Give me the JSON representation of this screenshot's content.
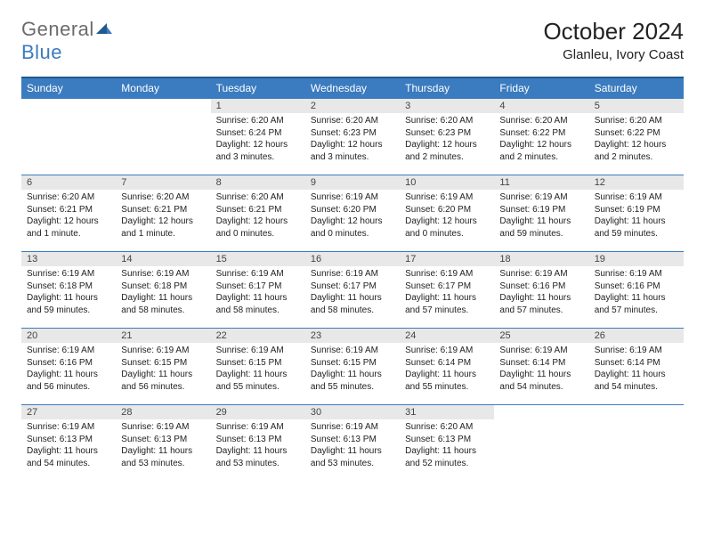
{
  "logo": {
    "text_general": "General",
    "text_blue": "Blue"
  },
  "title": "October 2024",
  "location": "Glanleu, Ivory Coast",
  "colors": {
    "header_bg": "#3b7bbf",
    "header_border_top": "#1f5a8f",
    "row_border": "#3b7bbf",
    "daynum_bg": "#e8e8e8",
    "text": "#222222",
    "logo_gray": "#6b6b6b",
    "logo_blue": "#3b7bbf"
  },
  "day_headers": [
    "Sunday",
    "Monday",
    "Tuesday",
    "Wednesday",
    "Thursday",
    "Friday",
    "Saturday"
  ],
  "weeks": [
    [
      {
        "n": "",
        "sr": "",
        "ss": "",
        "dl": ""
      },
      {
        "n": "",
        "sr": "",
        "ss": "",
        "dl": ""
      },
      {
        "n": "1",
        "sr": "Sunrise: 6:20 AM",
        "ss": "Sunset: 6:24 PM",
        "dl": "Daylight: 12 hours and 3 minutes."
      },
      {
        "n": "2",
        "sr": "Sunrise: 6:20 AM",
        "ss": "Sunset: 6:23 PM",
        "dl": "Daylight: 12 hours and 3 minutes."
      },
      {
        "n": "3",
        "sr": "Sunrise: 6:20 AM",
        "ss": "Sunset: 6:23 PM",
        "dl": "Daylight: 12 hours and 2 minutes."
      },
      {
        "n": "4",
        "sr": "Sunrise: 6:20 AM",
        "ss": "Sunset: 6:22 PM",
        "dl": "Daylight: 12 hours and 2 minutes."
      },
      {
        "n": "5",
        "sr": "Sunrise: 6:20 AM",
        "ss": "Sunset: 6:22 PM",
        "dl": "Daylight: 12 hours and 2 minutes."
      }
    ],
    [
      {
        "n": "6",
        "sr": "Sunrise: 6:20 AM",
        "ss": "Sunset: 6:21 PM",
        "dl": "Daylight: 12 hours and 1 minute."
      },
      {
        "n": "7",
        "sr": "Sunrise: 6:20 AM",
        "ss": "Sunset: 6:21 PM",
        "dl": "Daylight: 12 hours and 1 minute."
      },
      {
        "n": "8",
        "sr": "Sunrise: 6:20 AM",
        "ss": "Sunset: 6:21 PM",
        "dl": "Daylight: 12 hours and 0 minutes."
      },
      {
        "n": "9",
        "sr": "Sunrise: 6:19 AM",
        "ss": "Sunset: 6:20 PM",
        "dl": "Daylight: 12 hours and 0 minutes."
      },
      {
        "n": "10",
        "sr": "Sunrise: 6:19 AM",
        "ss": "Sunset: 6:20 PM",
        "dl": "Daylight: 12 hours and 0 minutes."
      },
      {
        "n": "11",
        "sr": "Sunrise: 6:19 AM",
        "ss": "Sunset: 6:19 PM",
        "dl": "Daylight: 11 hours and 59 minutes."
      },
      {
        "n": "12",
        "sr": "Sunrise: 6:19 AM",
        "ss": "Sunset: 6:19 PM",
        "dl": "Daylight: 11 hours and 59 minutes."
      }
    ],
    [
      {
        "n": "13",
        "sr": "Sunrise: 6:19 AM",
        "ss": "Sunset: 6:18 PM",
        "dl": "Daylight: 11 hours and 59 minutes."
      },
      {
        "n": "14",
        "sr": "Sunrise: 6:19 AM",
        "ss": "Sunset: 6:18 PM",
        "dl": "Daylight: 11 hours and 58 minutes."
      },
      {
        "n": "15",
        "sr": "Sunrise: 6:19 AM",
        "ss": "Sunset: 6:17 PM",
        "dl": "Daylight: 11 hours and 58 minutes."
      },
      {
        "n": "16",
        "sr": "Sunrise: 6:19 AM",
        "ss": "Sunset: 6:17 PM",
        "dl": "Daylight: 11 hours and 58 minutes."
      },
      {
        "n": "17",
        "sr": "Sunrise: 6:19 AM",
        "ss": "Sunset: 6:17 PM",
        "dl": "Daylight: 11 hours and 57 minutes."
      },
      {
        "n": "18",
        "sr": "Sunrise: 6:19 AM",
        "ss": "Sunset: 6:16 PM",
        "dl": "Daylight: 11 hours and 57 minutes."
      },
      {
        "n": "19",
        "sr": "Sunrise: 6:19 AM",
        "ss": "Sunset: 6:16 PM",
        "dl": "Daylight: 11 hours and 57 minutes."
      }
    ],
    [
      {
        "n": "20",
        "sr": "Sunrise: 6:19 AM",
        "ss": "Sunset: 6:16 PM",
        "dl": "Daylight: 11 hours and 56 minutes."
      },
      {
        "n": "21",
        "sr": "Sunrise: 6:19 AM",
        "ss": "Sunset: 6:15 PM",
        "dl": "Daylight: 11 hours and 56 minutes."
      },
      {
        "n": "22",
        "sr": "Sunrise: 6:19 AM",
        "ss": "Sunset: 6:15 PM",
        "dl": "Daylight: 11 hours and 55 minutes."
      },
      {
        "n": "23",
        "sr": "Sunrise: 6:19 AM",
        "ss": "Sunset: 6:15 PM",
        "dl": "Daylight: 11 hours and 55 minutes."
      },
      {
        "n": "24",
        "sr": "Sunrise: 6:19 AM",
        "ss": "Sunset: 6:14 PM",
        "dl": "Daylight: 11 hours and 55 minutes."
      },
      {
        "n": "25",
        "sr": "Sunrise: 6:19 AM",
        "ss": "Sunset: 6:14 PM",
        "dl": "Daylight: 11 hours and 54 minutes."
      },
      {
        "n": "26",
        "sr": "Sunrise: 6:19 AM",
        "ss": "Sunset: 6:14 PM",
        "dl": "Daylight: 11 hours and 54 minutes."
      }
    ],
    [
      {
        "n": "27",
        "sr": "Sunrise: 6:19 AM",
        "ss": "Sunset: 6:13 PM",
        "dl": "Daylight: 11 hours and 54 minutes."
      },
      {
        "n": "28",
        "sr": "Sunrise: 6:19 AM",
        "ss": "Sunset: 6:13 PM",
        "dl": "Daylight: 11 hours and 53 minutes."
      },
      {
        "n": "29",
        "sr": "Sunrise: 6:19 AM",
        "ss": "Sunset: 6:13 PM",
        "dl": "Daylight: 11 hours and 53 minutes."
      },
      {
        "n": "30",
        "sr": "Sunrise: 6:19 AM",
        "ss": "Sunset: 6:13 PM",
        "dl": "Daylight: 11 hours and 53 minutes."
      },
      {
        "n": "31",
        "sr": "Sunrise: 6:20 AM",
        "ss": "Sunset: 6:13 PM",
        "dl": "Daylight: 11 hours and 52 minutes."
      },
      {
        "n": "",
        "sr": "",
        "ss": "",
        "dl": ""
      },
      {
        "n": "",
        "sr": "",
        "ss": "",
        "dl": ""
      }
    ]
  ]
}
